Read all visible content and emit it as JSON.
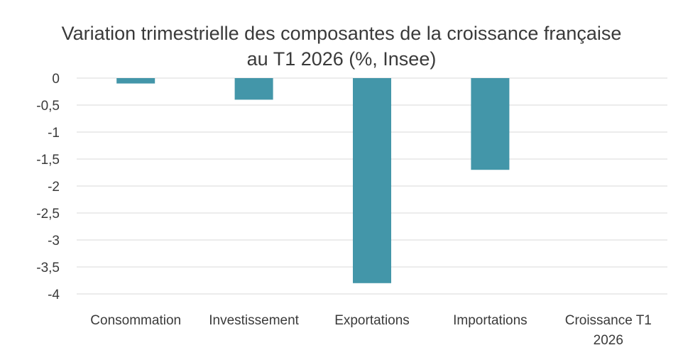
{
  "chart_data": {
    "type": "bar",
    "title_lines": [
      "Variation trimestrielle des composantes de la croissance française",
      "au T1 2026 (%, Insee)"
    ],
    "xlabel": "",
    "ylabel": "",
    "categories": [
      [
        "Consommation"
      ],
      [
        "Investissement"
      ],
      [
        "Exportations"
      ],
      [
        "Importations"
      ],
      [
        "Croissance T1",
        "2026"
      ]
    ],
    "values": [
      -0.1,
      -0.4,
      -3.8,
      -1.7,
      0
    ],
    "ylim": [
      -4,
      0
    ],
    "yticks": [
      0,
      -0.5,
      -1,
      -1.5,
      -2,
      -2.5,
      -3,
      -3.5,
      -4
    ],
    "ytick_labels": [
      "0",
      "-0,5",
      "-1",
      "-1,5",
      "-2",
      "-2,5",
      "-3",
      "-3,5",
      "-4"
    ],
    "grid": true,
    "bar_color": "#4396a9",
    "grid_color": "#d9d9d9"
  }
}
